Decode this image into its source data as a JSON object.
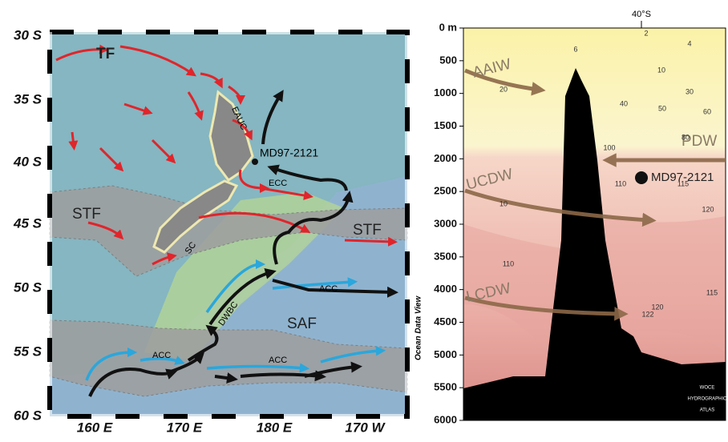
{
  "map": {
    "lat_labels": [
      "30 S",
      "35 S",
      "40 S",
      "45 S",
      "50 S",
      "55 S",
      "60 S"
    ],
    "lon_labels": [
      "160 E",
      "170 E",
      "180 E",
      "170 W"
    ],
    "credit": "Ocean Data View",
    "features": [
      "TF",
      "EAUC",
      "MD97-2121",
      "ECC",
      "STF",
      "STF",
      "SC",
      "ACC",
      "ACC",
      "ACC",
      "DWBC",
      "SAF"
    ]
  },
  "section": {
    "latitude": "40°S",
    "depth_labels": [
      "0 m",
      "500",
      "1000",
      "1500",
      "2000",
      "2500",
      "3000",
      "3500",
      "4000",
      "4500",
      "5000",
      "5500",
      "6000"
    ],
    "water_masses": [
      "AAIW",
      "PDW",
      "UCDW",
      "LCDW"
    ],
    "site": "MD97-2121",
    "contour_labels": [
      "2",
      "4",
      "6",
      "10",
      "20",
      "30",
      "40",
      "50",
      "60",
      "80",
      "100",
      "110",
      "115",
      "120",
      "10",
      "110",
      "115",
      "120",
      "122"
    ],
    "source": [
      "WOCE",
      "HYDROGRAPHIC",
      "ATLAS"
    ]
  }
}
